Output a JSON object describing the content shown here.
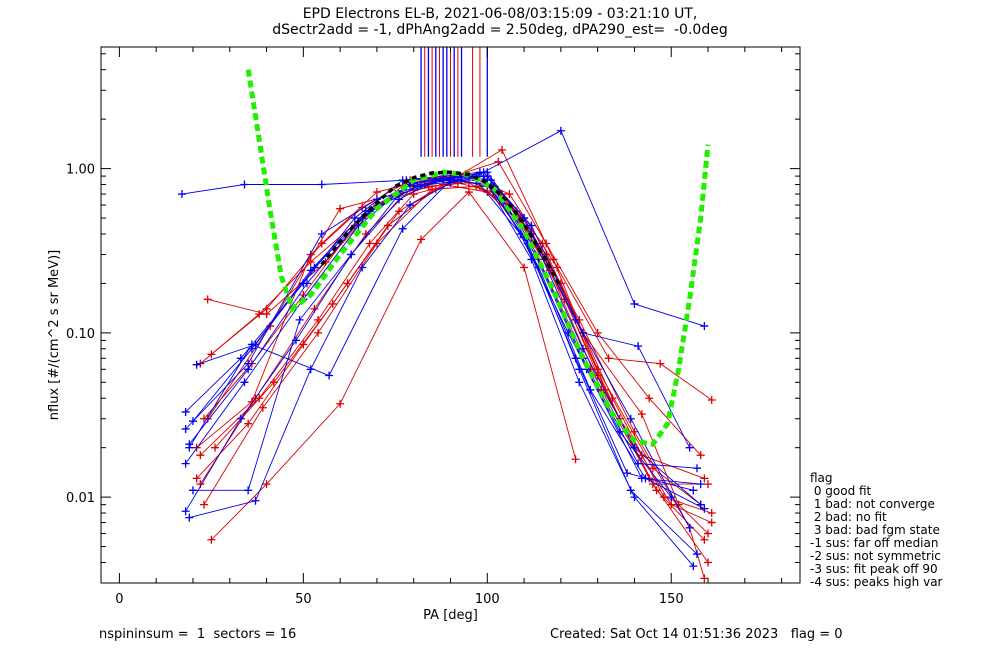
{
  "title": {
    "line1": "EPD Electrons EL-B, 2021-06-08/03:15:09 - 03:21:10 UT,",
    "line2": "dSectr2add = -1, dPhAng2add = 2.50deg, dPA290_est=  -0.0deg"
  },
  "footer": {
    "left": "nspininsum =  1  sectors = 16",
    "right": "Created: Sat Oct 14 01:51:36 2023   flag = 0"
  },
  "legend": {
    "title": "flag",
    "lines": [
      " 0 good fit",
      " 1 bad: not converge",
      " 2 bad: no fit",
      " 3 bad: bad fgm state",
      "-1 sus: far off median",
      "-2 sus: not symmetric",
      "-3 sus: fit peak off 90",
      "-4 sus: peaks high var"
    ]
  },
  "chart_data": {
    "type": "line",
    "xlabel": "PA [deg]",
    "ylabel": "nflux [#/(cm^2 s sr MeV)]",
    "xlim": [
      -5,
      185
    ],
    "ylim": [
      0.003,
      5.5
    ],
    "yscale": "log",
    "xticks": [
      0,
      50,
      100,
      150
    ],
    "xtick_labels": [
      "0",
      "50",
      "100",
      "150"
    ],
    "yticks": [
      0.01,
      0.1,
      1.0
    ],
    "ytick_labels": [
      "0.01",
      "0.10",
      "1.00"
    ],
    "colors": {
      "red": "#dd0000",
      "blue": "#0000ee",
      "green": "#22ee00",
      "black": "#000000"
    },
    "fit_green": {
      "x": [
        35,
        38,
        41,
        44,
        47,
        52,
        60,
        70,
        80,
        88,
        95,
        102,
        110,
        118,
        126,
        134,
        140,
        145,
        149,
        152,
        155,
        158,
        160
      ],
      "y": [
        4.0,
        1.5,
        0.55,
        0.22,
        0.14,
        0.17,
        0.3,
        0.57,
        0.85,
        0.95,
        0.92,
        0.75,
        0.42,
        0.18,
        0.07,
        0.032,
        0.022,
        0.021,
        0.028,
        0.06,
        0.16,
        0.5,
        1.4
      ]
    },
    "fit_black": {
      "x": [
        55,
        60,
        65,
        70,
        75,
        80,
        85,
        90,
        95,
        100,
        105,
        110,
        115,
        120
      ],
      "y": [
        0.26,
        0.36,
        0.48,
        0.62,
        0.78,
        0.88,
        0.94,
        0.95,
        0.92,
        0.82,
        0.65,
        0.46,
        0.3,
        0.19
      ]
    },
    "vlines_red": [
      83,
      85,
      87,
      90,
      92,
      96,
      98
    ],
    "vlines_blue": [
      82,
      84,
      86,
      88,
      89,
      91,
      93,
      100
    ],
    "vline_ymin": 1.18,
    "series": [
      {
        "color": "red",
        "x": [
          25,
          40,
          55,
          70,
          80,
          90,
          100,
          115,
          130,
          145,
          158
        ],
        "y": [
          0.074,
          0.14,
          0.35,
          0.72,
          0.82,
          0.88,
          0.9,
          0.35,
          0.06,
          0.015,
          0.009
        ]
      },
      {
        "color": "red",
        "x": [
          22,
          38,
          52,
          68,
          82,
          92,
          104,
          118,
          132,
          146,
          159
        ],
        "y": [
          0.065,
          0.13,
          0.27,
          0.55,
          0.8,
          0.9,
          1.3,
          0.28,
          0.045,
          0.011,
          0.0055
        ]
      },
      {
        "color": "red",
        "x": [
          23,
          36,
          50,
          64,
          78,
          88,
          102,
          116,
          130,
          144,
          160
        ],
        "y": [
          0.03,
          0.065,
          0.17,
          0.45,
          0.82,
          0.88,
          0.78,
          0.3,
          0.055,
          0.013,
          0.004
        ]
      },
      {
        "color": "red",
        "x": [
          24,
          40,
          56,
          70,
          84,
          95,
          106,
          120,
          134,
          148,
          161
        ],
        "y": [
          0.16,
          0.13,
          0.27,
          0.6,
          0.78,
          0.82,
          0.6,
          0.2,
          0.04,
          0.01,
          0.008
        ]
      },
      {
        "color": "red",
        "x": [
          21,
          35,
          50,
          62,
          76,
          90,
          100,
          114,
          128,
          142,
          159
        ],
        "y": [
          0.013,
          0.028,
          0.085,
          0.2,
          0.55,
          0.85,
          0.8,
          0.28,
          0.06,
          0.018,
          0.013
        ]
      },
      {
        "color": "red",
        "x": [
          25,
          40,
          60,
          82,
          95,
          110,
          124
        ],
        "y": [
          0.0055,
          0.012,
          0.037,
          0.37,
          0.72,
          0.25,
          0.017
        ]
      },
      {
        "color": "red",
        "x": [
          22,
          38,
          54,
          68,
          80,
          92,
          104,
          117,
          131,
          145,
          160
        ],
        "y": [
          0.018,
          0.04,
          0.12,
          0.35,
          0.7,
          0.82,
          0.7,
          0.24,
          0.045,
          0.012,
          0.012
        ]
      },
      {
        "color": "red",
        "x": [
          26,
          42,
          58,
          73,
          86,
          97,
          108,
          121,
          136,
          150,
          161
        ],
        "y": [
          0.02,
          0.05,
          0.15,
          0.45,
          0.75,
          0.78,
          0.55,
          0.16,
          0.03,
          0.009,
          0.007
        ]
      },
      {
        "color": "red",
        "x": [
          23,
          39,
          54,
          70,
          85,
          98,
          110,
          125,
          140,
          155,
          159
        ],
        "y": [
          0.009,
          0.035,
          0.1,
          0.35,
          0.75,
          0.78,
          0.5,
          0.12,
          0.025,
          0.0065,
          0.0032
        ]
      },
      {
        "color": "red",
        "x": [
          21,
          36,
          52,
          66,
          79,
          91,
          103,
          116,
          130,
          144,
          158
        ],
        "y": [
          0.02,
          0.038,
          0.3,
          0.58,
          0.85,
          0.9,
          1.1,
          0.35,
          0.1,
          0.04,
          0.018
        ]
      },
      {
        "color": "red",
        "x": [
          24,
          41,
          60,
          75,
          88,
          100,
          112,
          126,
          142,
          152,
          160
        ],
        "y": [
          0.03,
          0.11,
          0.57,
          0.7,
          0.8,
          0.72,
          0.4,
          0.1,
          0.032,
          0.009,
          0.006
        ]
      },
      {
        "color": "red",
        "x": [
          22,
          37,
          53,
          67,
          80,
          94,
          106,
          119,
          133,
          147,
          161
        ],
        "y": [
          0.012,
          0.04,
          0.14,
          0.4,
          0.78,
          0.92,
          0.7,
          0.25,
          0.07,
          0.065,
          0.039
        ]
      },
      {
        "color": "blue",
        "x": [
          17,
          34,
          55,
          78,
          97,
          120,
          140,
          159
        ],
        "y": [
          0.7,
          0.8,
          0.8,
          0.85,
          0.9,
          1.7,
          0.15,
          0.11
        ]
      },
      {
        "color": "blue",
        "x": [
          18,
          35,
          55,
          70,
          83,
          92,
          100,
          112,
          126,
          140,
          158
        ],
        "y": [
          0.026,
          0.065,
          0.4,
          0.65,
          0.8,
          0.88,
          0.95,
          0.4,
          0.08,
          0.02,
          0.009
        ]
      },
      {
        "color": "blue",
        "x": [
          19,
          37,
          52,
          66,
          79,
          90,
          99,
          111,
          125,
          139,
          157
        ],
        "y": [
          0.0075,
          0.0095,
          0.06,
          0.25,
          0.6,
          0.82,
          0.9,
          0.35,
          0.06,
          0.011,
          0.0045
        ]
      },
      {
        "color": "blue",
        "x": [
          18,
          33,
          50,
          64,
          77,
          88,
          98,
          110,
          124,
          138,
          156
        ],
        "y": [
          0.033,
          0.07,
          0.2,
          0.5,
          0.85,
          0.9,
          0.95,
          0.38,
          0.07,
          0.014,
          0.011
        ]
      },
      {
        "color": "blue",
        "x": [
          20,
          35,
          49,
          63,
          76,
          86,
          97,
          109,
          122,
          136,
          150
        ],
        "y": [
          0.011,
          0.011,
          0.12,
          0.3,
          0.65,
          0.85,
          0.85,
          0.4,
          0.1,
          0.025,
          0.01
        ]
      },
      {
        "color": "blue",
        "x": [
          19,
          36,
          57,
          77,
          90,
          100,
          112,
          126,
          141,
          155
        ],
        "y": [
          0.02,
          0.085,
          0.055,
          0.43,
          0.85,
          0.9,
          0.45,
          0.1,
          0.083,
          0.02
        ]
      },
      {
        "color": "blue",
        "x": [
          18,
          34,
          50,
          65,
          78,
          90,
          100,
          112,
          125,
          140,
          156
        ],
        "y": [
          0.016,
          0.05,
          0.16,
          0.45,
          0.78,
          0.85,
          0.8,
          0.28,
          0.05,
          0.01,
          0.0038
        ]
      },
      {
        "color": "blue",
        "x": [
          20,
          36,
          52,
          67,
          80,
          92,
          101,
          113,
          127,
          142,
          158
        ],
        "y": [
          0.029,
          0.08,
          0.24,
          0.55,
          0.82,
          0.9,
          0.85,
          0.3,
          0.06,
          0.013,
          0.012
        ]
      },
      {
        "color": "blue",
        "x": [
          19,
          35,
          51,
          66,
          79,
          91,
          100,
          112,
          126,
          141,
          157
        ],
        "y": [
          0.021,
          0.06,
          0.2,
          0.5,
          0.8,
          0.88,
          0.9,
          0.35,
          0.07,
          0.016,
          0.015
        ]
      },
      {
        "color": "blue",
        "x": [
          18,
          33,
          48,
          63,
          76,
          88,
          99,
          110,
          124,
          139,
          155
        ],
        "y": [
          0.0082,
          0.03,
          0.09,
          0.3,
          0.7,
          0.85,
          0.95,
          0.5,
          0.12,
          0.03,
          0.0065
        ]
      },
      {
        "color": "blue",
        "x": [
          21,
          37,
          53,
          68,
          81,
          93,
          102,
          114,
          128,
          143,
          159
        ],
        "y": [
          0.064,
          0.085,
          0.25,
          0.55,
          0.78,
          0.85,
          0.75,
          0.25,
          0.045,
          0.013,
          0.0085
        ]
      }
    ]
  }
}
